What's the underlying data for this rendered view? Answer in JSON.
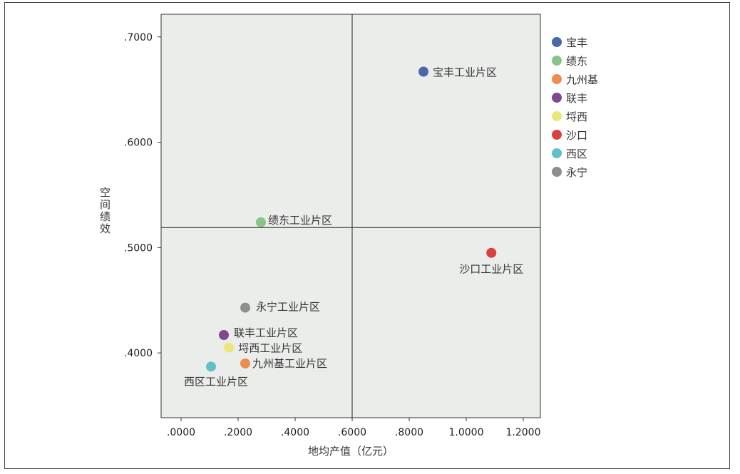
{
  "chart_data": {
    "type": "scatter",
    "xlabel": "地均产值（亿元）",
    "ylabel": "空间绩效",
    "xlim": [
      -0.07,
      1.26
    ],
    "ylim": [
      0.3385,
      0.7215
    ],
    "xticks": [
      0.0,
      0.2,
      0.4,
      0.6,
      0.8,
      1.0,
      1.2
    ],
    "xtick_labels": [
      ".0000",
      ".2000",
      ".4000",
      ".6000",
      ".8000",
      "1.0000",
      "1.2000"
    ],
    "yticks": [
      0.4,
      0.5,
      0.6,
      0.7
    ],
    "ytick_labels": [
      ".4000",
      ".5000",
      ".6000",
      ".7000"
    ],
    "reference_lines": {
      "x": 0.6,
      "y": 0.519
    },
    "grid": false,
    "legend_position": "right",
    "plot_background": "#ebedeb",
    "series": [
      {
        "name": "宝丰",
        "label": "宝丰工业片区",
        "color": "#4a67a6",
        "x": 0.85,
        "y": 0.667
      },
      {
        "name": "绩东",
        "label": "绩东工业片区",
        "color": "#86c487",
        "x": 0.28,
        "y": 0.524
      },
      {
        "name": "九州基",
        "label": "九州基工业片区",
        "color": "#ef8b4f",
        "x": 0.225,
        "y": 0.39
      },
      {
        "name": "联丰",
        "label": "联丰工业片区",
        "color": "#7e4a8e",
        "x": 0.15,
        "y": 0.417
      },
      {
        "name": "埒西",
        "label": "埒西工业片区",
        "color": "#ece57a",
        "x": 0.168,
        "y": 0.405
      },
      {
        "name": "沙口",
        "label": "沙口工业片区",
        "color": "#d94040",
        "x": 1.088,
        "y": 0.495
      },
      {
        "name": "西区",
        "label": "西区工业片区",
        "color": "#63bfc6",
        "x": 0.105,
        "y": 0.387
      },
      {
        "name": "永宁",
        "label": "永宁工业片区",
        "color": "#8e8e8e",
        "x": 0.225,
        "y": 0.443
      }
    ]
  }
}
